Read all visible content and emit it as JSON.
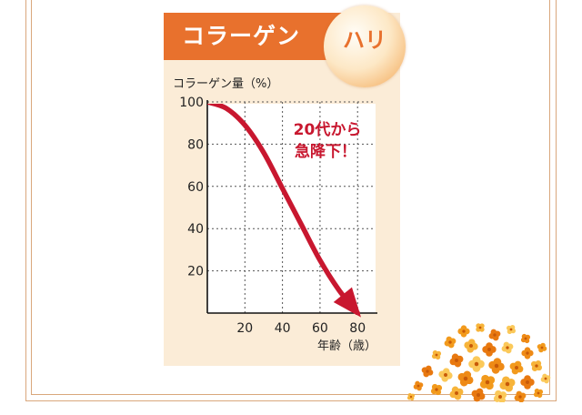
{
  "header": {
    "title": "コラーゲン",
    "badge": "ハリ"
  },
  "colors": {
    "header_bg": "#e8712d",
    "panel_bg": "#fbecd7",
    "curve": "#c8172f",
    "frame": "#d9a77c"
  },
  "chart_data": {
    "type": "line",
    "ylabel": "コラーゲン量（%）",
    "xlabel": "年齢（歳）",
    "xlim": [
      0,
      90
    ],
    "ylim": [
      0,
      100
    ],
    "x_ticks": [
      "20",
      "40",
      "60",
      "80"
    ],
    "y_ticks": [
      "100",
      "80",
      "60",
      "40",
      "20"
    ],
    "grid": true,
    "series": [
      {
        "x": [
          0,
          10,
          20,
          30,
          40,
          50,
          60,
          70,
          80
        ],
        "y": [
          100,
          97,
          89,
          76,
          59,
          42,
          25,
          11,
          0
        ]
      }
    ],
    "annotation": [
      "20代から",
      "急降下！"
    ]
  },
  "decoration": {
    "flowers_icon": "osmanthus-flowers"
  }
}
